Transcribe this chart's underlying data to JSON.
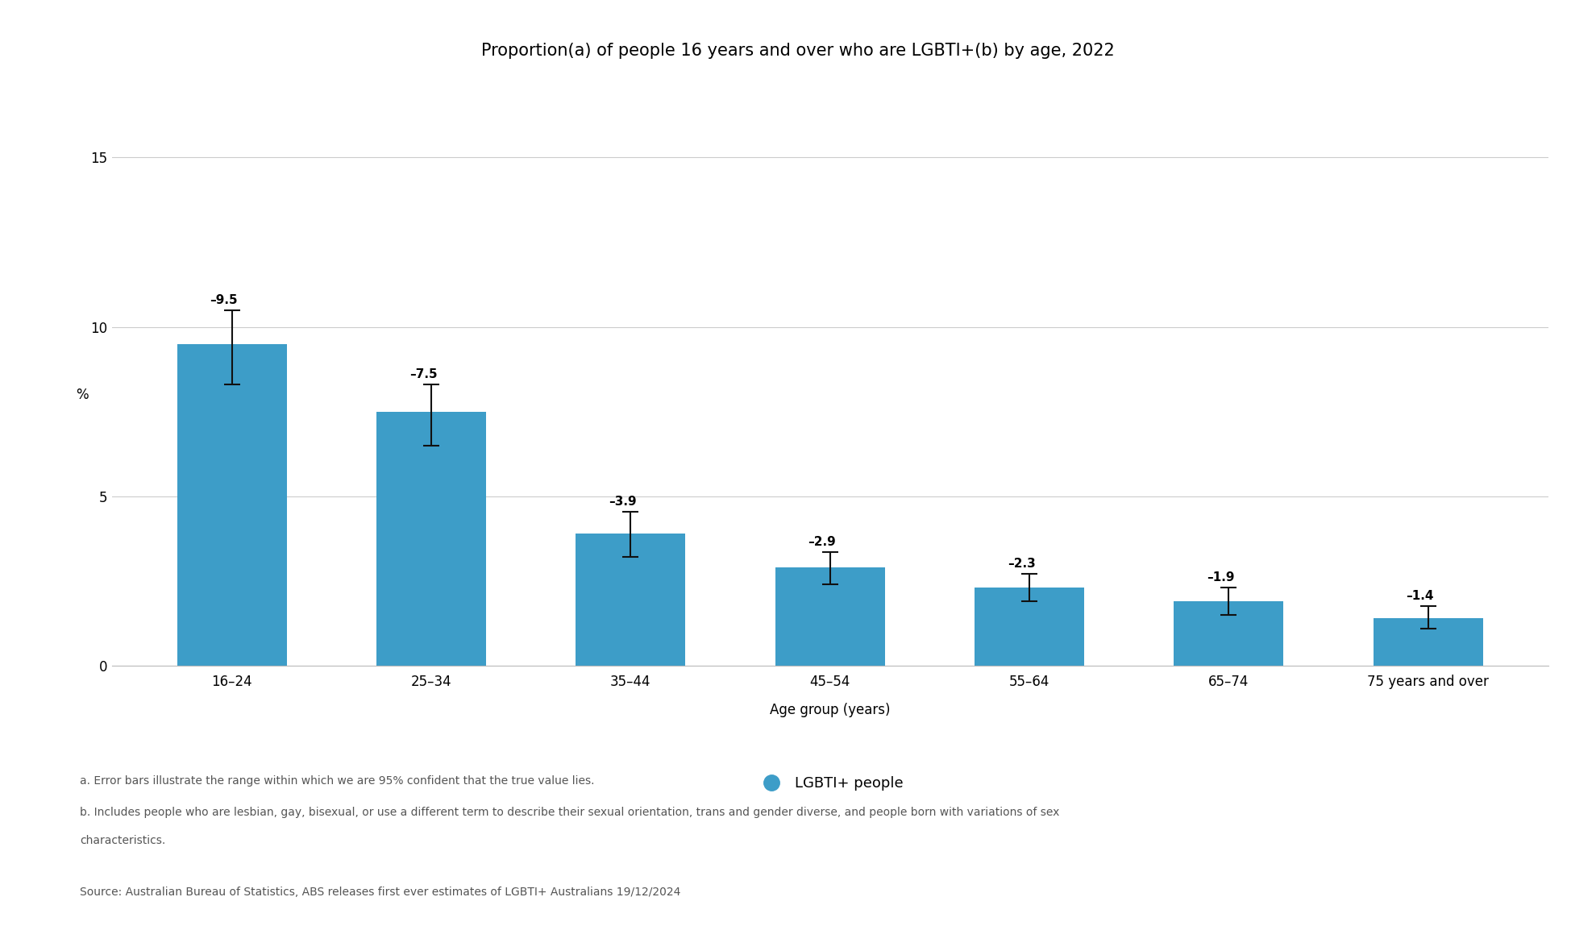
{
  "title": "Proportion(a) of people 16 years and over who are LGBTI+(b) by age, 2022",
  "categories": [
    "16–24",
    "25–34",
    "35–44",
    "45–54",
    "55–64",
    "65–74",
    "75 years and over"
  ],
  "values": [
    9.5,
    7.5,
    3.9,
    2.9,
    2.3,
    1.9,
    1.4
  ],
  "error_upper": [
    1.0,
    0.8,
    0.65,
    0.45,
    0.4,
    0.4,
    0.35
  ],
  "error_lower": [
    1.2,
    1.0,
    0.7,
    0.5,
    0.4,
    0.4,
    0.3
  ],
  "bar_color": "#3d9dc8",
  "error_color": "#111111",
  "ylabel": "%",
  "xlabel": "Age group (years)",
  "ylim": [
    0,
    16
  ],
  "yticks": [
    0,
    5,
    10,
    15
  ],
  "legend_label": "LGBTI+ people",
  "legend_color": "#3d9dc8",
  "title_fontsize": 15,
  "axis_label_fontsize": 12,
  "tick_fontsize": 12,
  "annotation_fontsize": 11,
  "footnote_a": "a. Error bars illustrate the range within which we are 95% confident that the true value lies.",
  "footnote_b": "b. Includes people who are lesbian, gay, bisexual, or use a different term to describe their sexual orientation, trans and gender diverse, and people born with variations of sex characteristics.",
  "source": "Source: Australian Bureau of Statistics, ABS releases first ever estimates of LGBTI+ Australians 19/12/2024",
  "background_color": "#ffffff",
  "grid_color": "#cccccc"
}
